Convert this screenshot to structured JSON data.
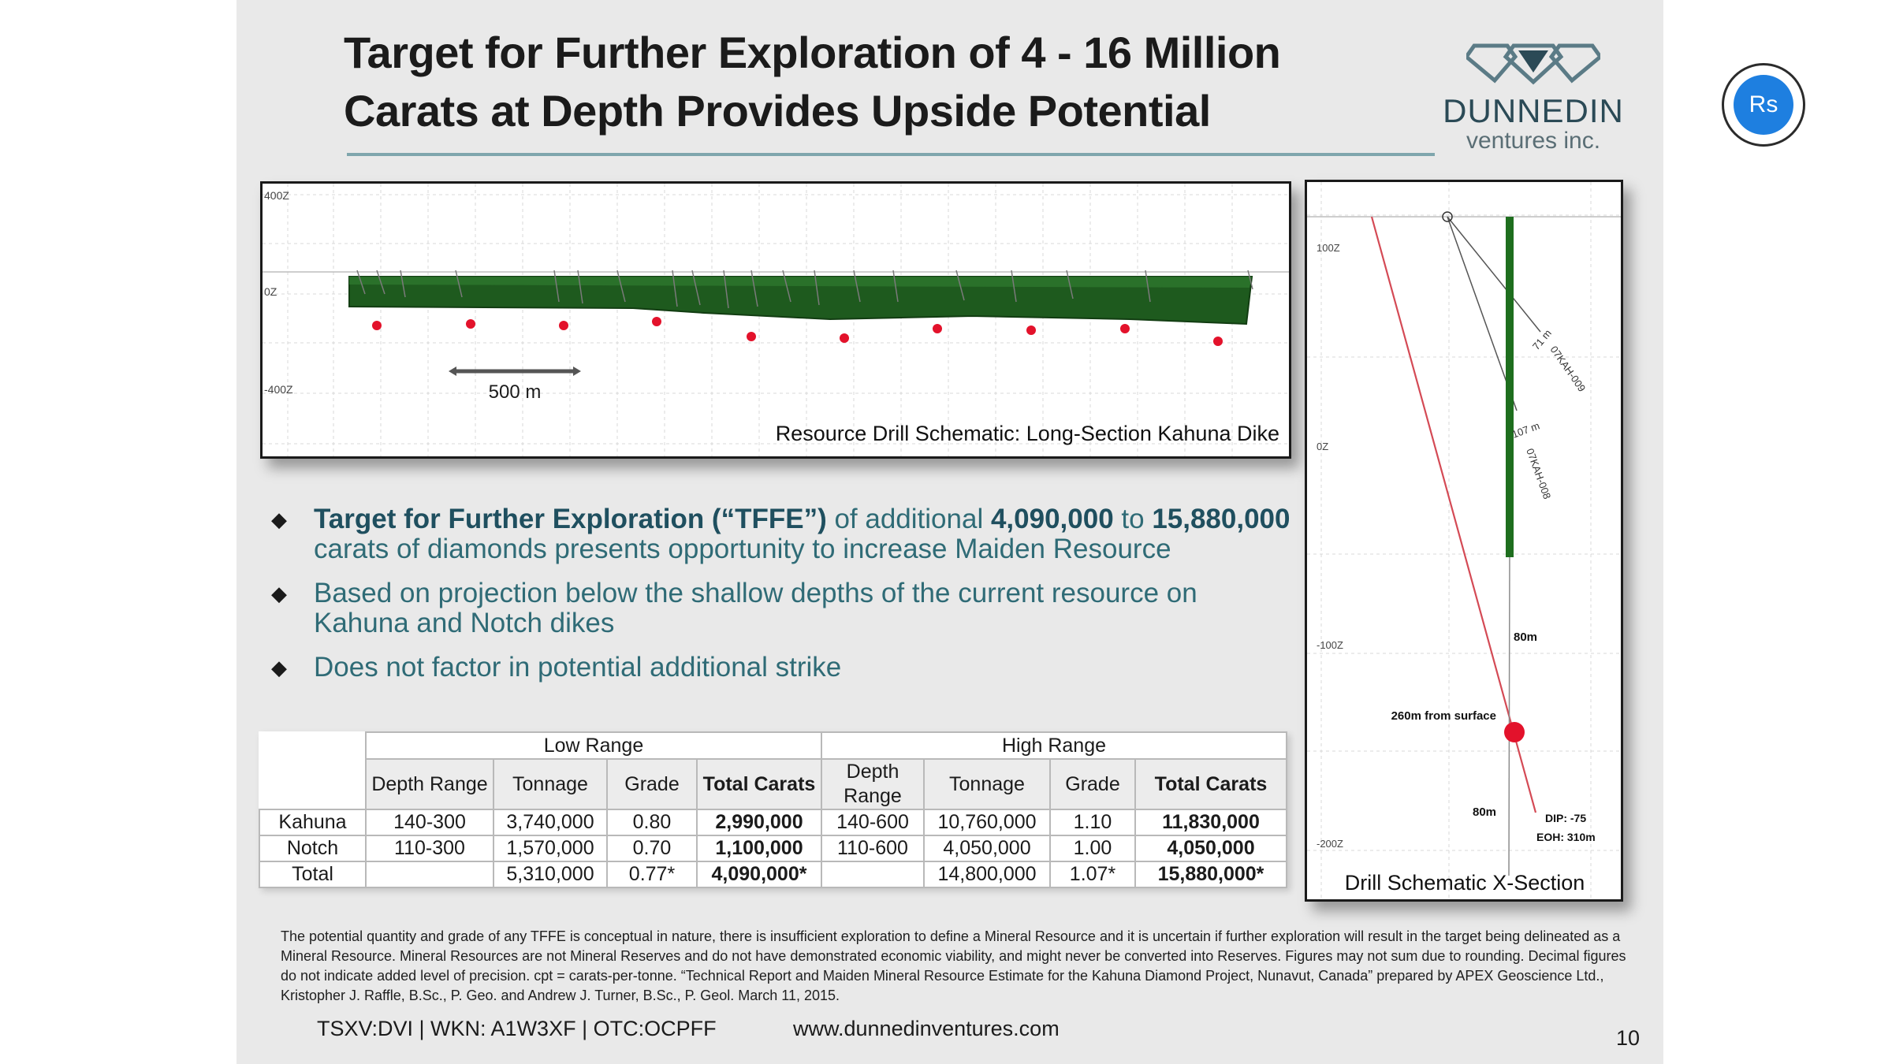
{
  "slide": {
    "title_line1": "Target for Further Exploration of 4 - 16 Million",
    "title_line2": "Carats at Depth Provides Upside Potential",
    "logo_name": "DUNNEDIN",
    "logo_sub": "ventures inc."
  },
  "long_section": {
    "caption": "Resource Drill Schematic: Long-Section Kahuna Dike",
    "scale_label": "500 m",
    "elev_labels": [
      "400Z",
      "0Z",
      "-400Z"
    ]
  },
  "xsection": {
    "caption": "Drill Schematic X-Section",
    "elev_labels": [
      "100Z",
      "0Z",
      "-100Z",
      "-200Z"
    ],
    "hole1_label": "07KAH-009",
    "hole1_depth": "71 m",
    "hole2_label": "07KAH-008",
    "hole2_depth": "107 m",
    "upper_interval": "80m",
    "lower_interval": "80m",
    "surface_label": "260m from surface",
    "dip_label": "DIP: -75",
    "eoh_label": "EOH: 310m"
  },
  "bullets": {
    "b1_hl1": "Target for Further Exploration (“TFFE”)",
    "b1_t1": " of additional ",
    "b1_hl2": "4,090,000",
    "b1_t2": " to ",
    "b1_hl3": "15,880,000",
    "b1_t3": "carats of diamonds presents opportunity to increase Maiden Resource",
    "b2": "Based on projection below the shallow depths of the current resource on Kahuna and Notch dikes",
    "b3": "Does not factor in potential additional strike"
  },
  "table": {
    "group_low": "Low Range",
    "group_high": "High Range",
    "headers": [
      "Depth Range",
      "Tonnage",
      "Grade",
      "Total Carats",
      "Depth Range",
      "Tonnage",
      "Grade",
      "Total Carats"
    ],
    "rows": [
      [
        "Kahuna",
        "140-300",
        "3,740,000",
        "0.80",
        "2,990,000",
        "140-600",
        "10,760,000",
        "1.10",
        "11,830,000"
      ],
      [
        "Notch",
        "110-300",
        "1,570,000",
        "0.70",
        "1,100,000",
        "110-600",
        "4,050,000",
        "1.00",
        "4,050,000"
      ],
      [
        "Total",
        "",
        "5,310,000",
        "0.77*",
        "4,090,000*",
        "",
        "14,800,000",
        "1.07*",
        "15,880,000*"
      ]
    ]
  },
  "disclaimer": "The potential quantity and grade of any TFFE is conceptual in nature, there is insufficient exploration to define a Mineral Resource and it is uncertain if further exploration will result in the target being delineated as a Mineral Resource. Mineral Resources are not Mineral Reserves and do not have demonstrated economic viability, and might never be converted into Reserves. Figures may not sum due to rounding. Decimal figures do not indicate added level of precision. cpt = carats-per-tonne. “Technical Report and Maiden Mineral Resource Estimate for the Kahuna Diamond Project, Nunavut, Canada” prepared by APEX Geoscience Ltd., Kristopher J. Raffle, B.Sc., P. Geo. and Andrew J. Turner, B.Sc., P. Geol. March 11, 2015.",
  "footer": {
    "tickers": "TSXV:DVI  |  WKN: A1W3XF  | OTC:OCPFF",
    "website": "www.dunnedinventures.com",
    "page": "10"
  },
  "badge": {
    "label": "Rs"
  },
  "colors": {
    "title": "#1b1b1b",
    "bullet": "#2f6b76",
    "dike": "#1e5a1e",
    "sample": "#e3122b",
    "accent": "#7fa6ad"
  }
}
